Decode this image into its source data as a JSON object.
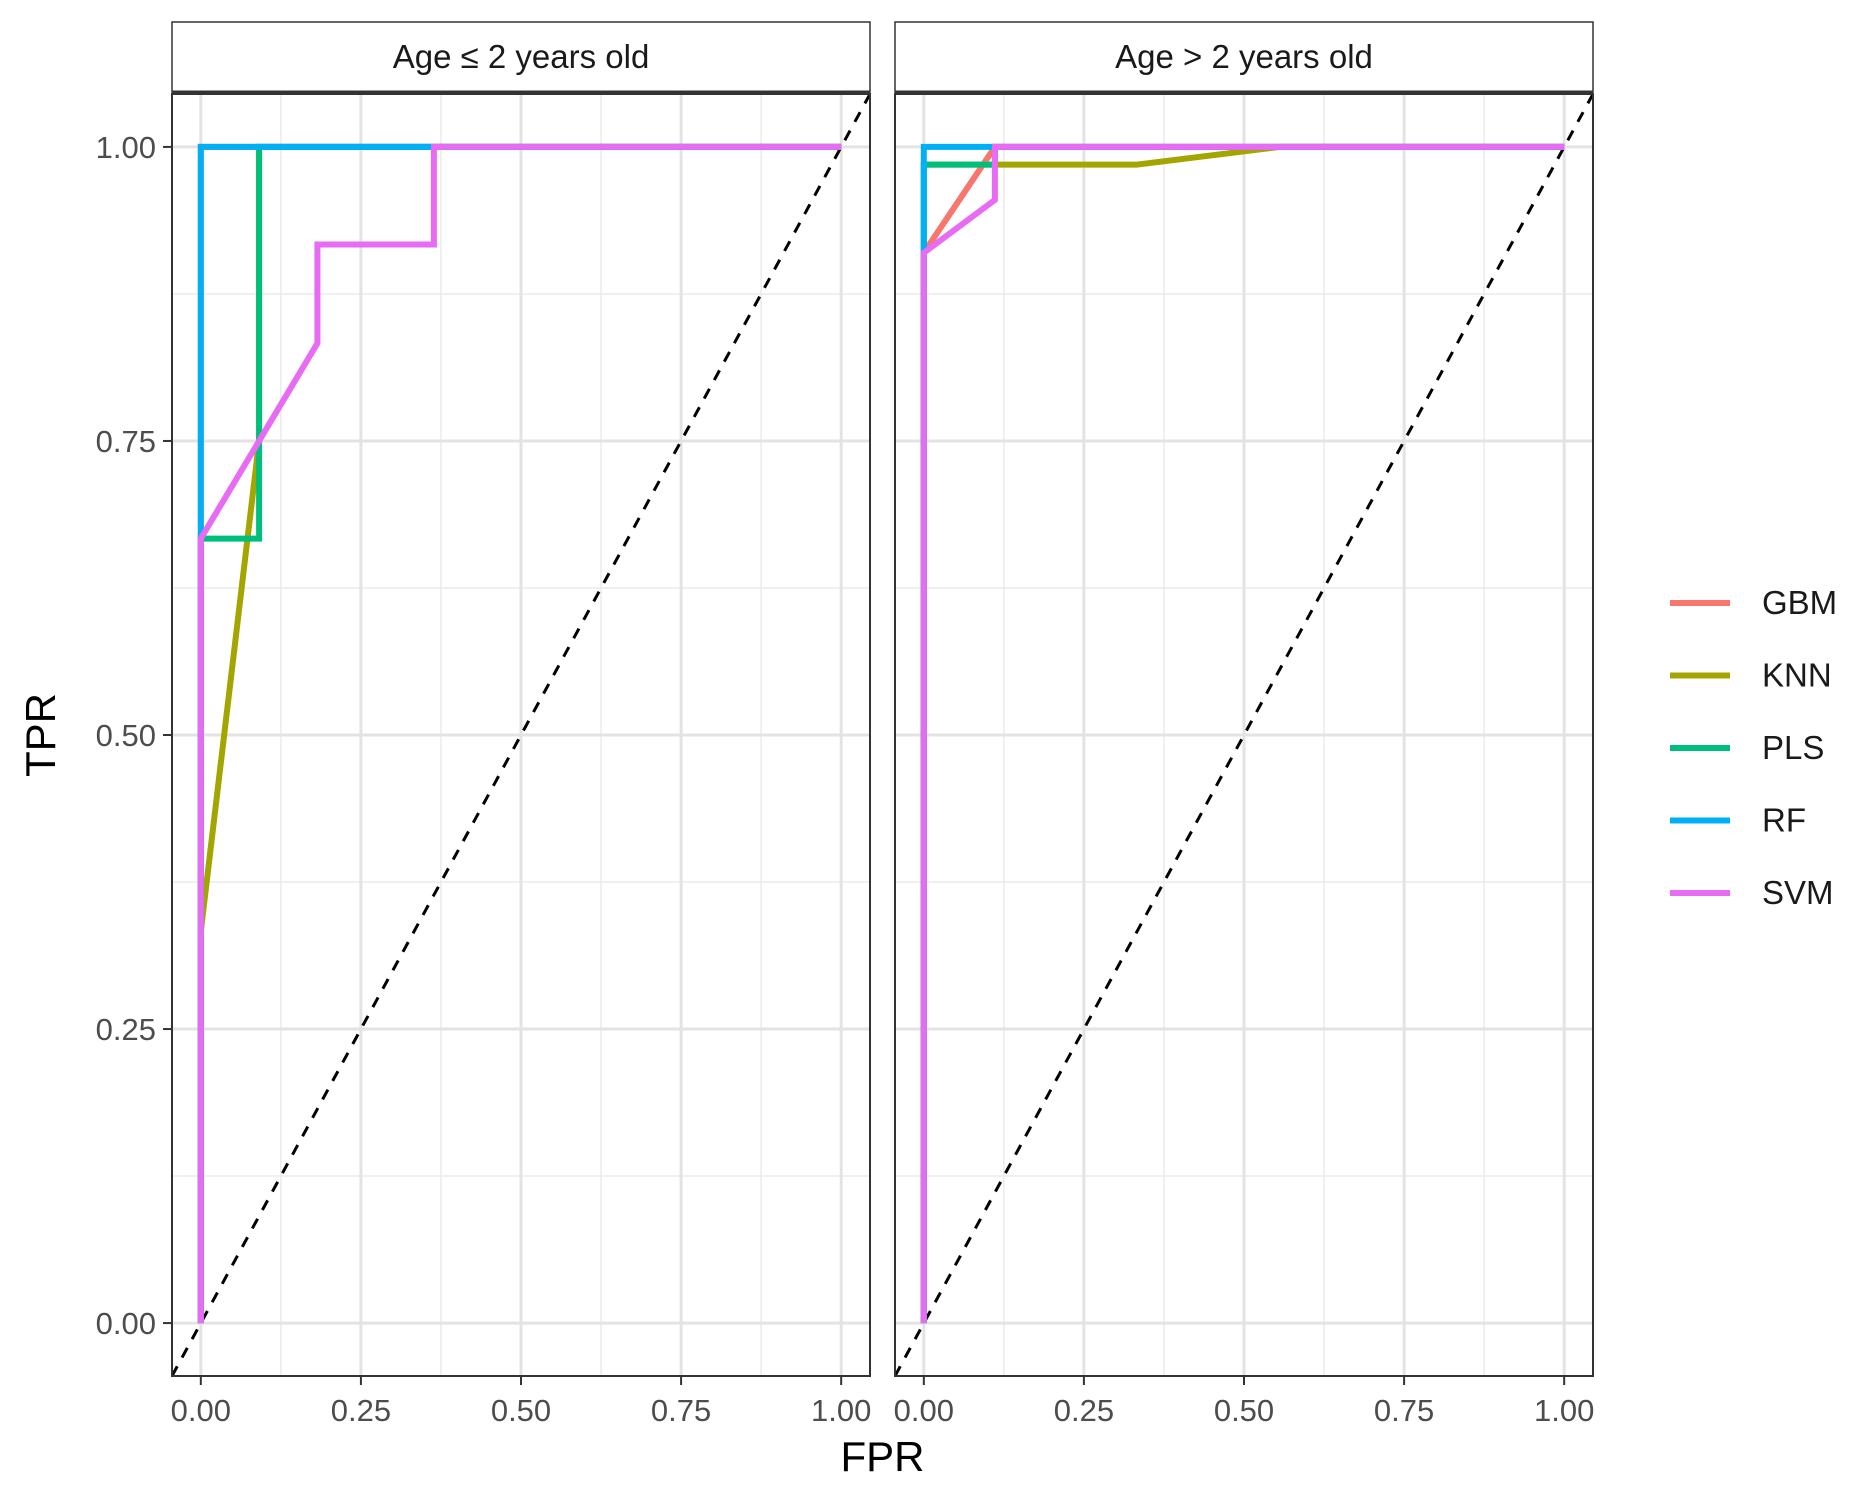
{
  "chart_data": {
    "type": "line",
    "xlabel": "FPR",
    "ylabel": "TPR",
    "xlim": [
      -0.045,
      1.045
    ],
    "ylim": [
      -0.045,
      1.045
    ],
    "x_ticks": [
      0,
      0.25,
      0.5,
      0.75,
      1
    ],
    "x_tick_labels": [
      "0.00",
      "0.25",
      "0.50",
      "0.75",
      "1.00"
    ],
    "y_ticks": [
      0,
      0.25,
      0.5,
      0.75,
      1
    ],
    "y_tick_labels": [
      "0.00",
      "0.25",
      "0.50",
      "0.75",
      "1.00"
    ],
    "grid": true,
    "legend_position": "right",
    "reference_line": {
      "style": "dashed",
      "color": "#000000",
      "from": [
        0,
        0
      ],
      "to": [
        1,
        1
      ]
    },
    "legend": [
      {
        "name": "GBM",
        "color": "#F8766D"
      },
      {
        "name": "KNN",
        "color": "#A3A500"
      },
      {
        "name": "PLS",
        "color": "#00BF7D"
      },
      {
        "name": "RF",
        "color": "#00B0F6"
      },
      {
        "name": "SVM",
        "color": "#E76BF3"
      }
    ],
    "panels": [
      {
        "title": "Age ≤ 2 years old",
        "series": [
          {
            "name": "GBM",
            "x": [
              0,
              0,
              1
            ],
            "y": [
              0,
              1,
              1
            ]
          },
          {
            "name": "KNN",
            "x": [
              0,
              0,
              0.091,
              0.091,
              1
            ],
            "y": [
              0,
              0.333,
              0.75,
              1,
              1
            ]
          },
          {
            "name": "PLS",
            "x": [
              0,
              0,
              0.091,
              0.091,
              1
            ],
            "y": [
              0,
              0.667,
              0.667,
              1,
              1
            ]
          },
          {
            "name": "RF",
            "x": [
              0,
              0,
              0,
              1
            ],
            "y": [
              0,
              0.667,
              1,
              1
            ]
          },
          {
            "name": "SVM",
            "x": [
              0,
              0,
              0.182,
              0.182,
              0.364,
              0.364,
              1
            ],
            "y": [
              0,
              0.667,
              0.833,
              0.917,
              0.917,
              1,
              1
            ]
          }
        ]
      },
      {
        "title": "Age > 2 years old",
        "series": [
          {
            "name": "GBM",
            "x": [
              0,
              0,
              0.111,
              1
            ],
            "y": [
              0,
              0.91,
              1,
              1
            ]
          },
          {
            "name": "KNN",
            "x": [
              0,
              0,
              0.333,
              0.556,
              1
            ],
            "y": [
              0,
              0.985,
              0.985,
              1,
              1
            ]
          },
          {
            "name": "PLS",
            "x": [
              0,
              0,
              0.111,
              0.111,
              1
            ],
            "y": [
              0,
              0.985,
              0.985,
              1,
              1
            ]
          },
          {
            "name": "RF",
            "x": [
              0,
              0,
              0.111,
              1
            ],
            "y": [
              0,
              1,
              1,
              1
            ]
          },
          {
            "name": "SVM",
            "x": [
              0,
              0,
              0.111,
              0.111,
              1
            ],
            "y": [
              0,
              0.91,
              0.955,
              1,
              1
            ]
          }
        ]
      }
    ]
  }
}
